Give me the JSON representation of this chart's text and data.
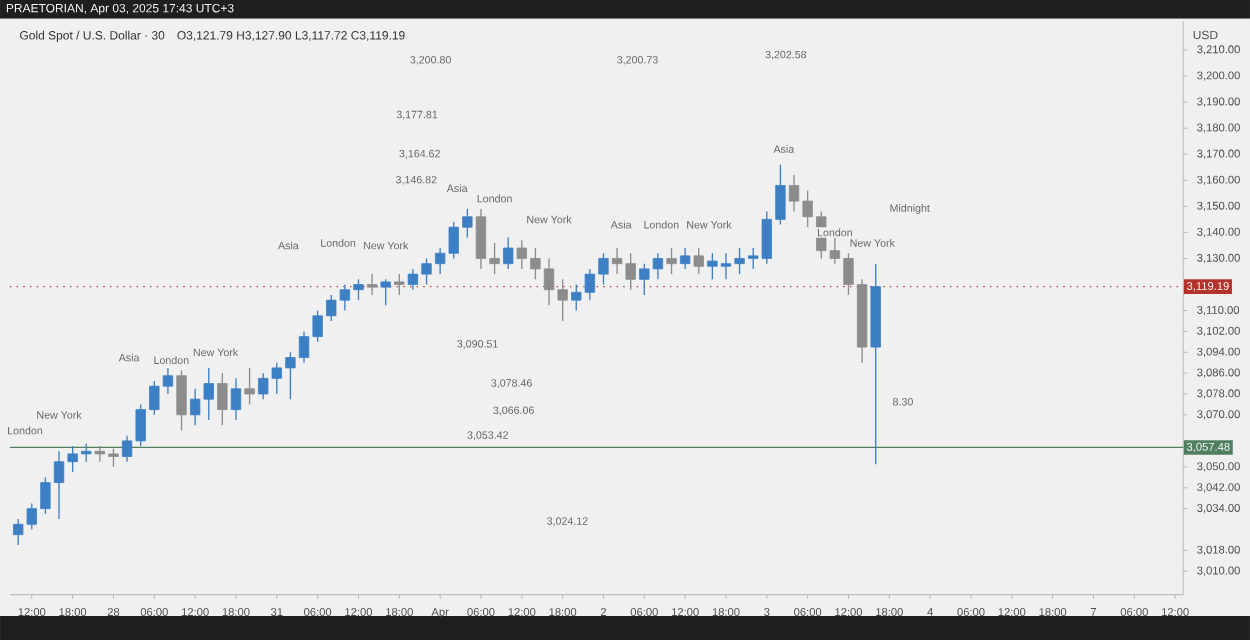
{
  "chart_data": {
    "type": "candlestick",
    "title": "Gold Spot / U.S. Dollar · 30",
    "subtitle": "O3,121.79 H3,127.90 L3,117.72 C3,119.19",
    "ylabel": "USD",
    "categories": [
      null,
      "12:00",
      null,
      null,
      "18:00",
      null,
      null,
      "28",
      null,
      null,
      "06:00",
      null,
      null,
      "12:00",
      null,
      null,
      "18:00",
      null,
      null,
      "31",
      null,
      null,
      "06:00",
      null,
      null,
      "12:00",
      null,
      null,
      "18:00",
      null,
      null,
      "Apr",
      null,
      null,
      "06:00",
      null,
      null,
      "12:00",
      null,
      null,
      "18:00",
      null,
      null,
      "2",
      null,
      null,
      "06:00",
      null,
      null,
      "12:00",
      null,
      null,
      "18:00",
      null,
      null,
      "3",
      null,
      null,
      "06:00",
      null,
      null,
      "12:00",
      null,
      null,
      "18:00",
      null,
      null,
      "4",
      null,
      null,
      "06:00",
      null,
      null,
      "12:00",
      null,
      null,
      "18:00",
      null,
      null,
      "7",
      null,
      null,
      "06:00",
      null,
      null,
      "12:00"
    ],
    "ohlc": [
      [
        3024,
        3030,
        3020,
        3028
      ],
      [
        3028,
        3036,
        3026,
        3034
      ],
      [
        3034,
        3046,
        3032,
        3044
      ],
      [
        3044,
        3056,
        3030,
        3052
      ],
      [
        3052,
        3058,
        3048,
        3055
      ],
      [
        3055,
        3059,
        3052,
        3056
      ],
      [
        3056,
        3058,
        3052,
        3055
      ],
      [
        3055,
        3057,
        3050,
        3054
      ],
      [
        3054,
        3062,
        3052,
        3060
      ],
      [
        3060,
        3074,
        3058,
        3072
      ],
      [
        3072,
        3083,
        3070,
        3081
      ],
      [
        3081,
        3088,
        3078,
        3085
      ],
      [
        3085,
        3087,
        3064,
        3070
      ],
      [
        3070,
        3080,
        3066,
        3076
      ],
      [
        3076,
        3088,
        3068,
        3082
      ],
      [
        3082,
        3086,
        3066,
        3072
      ],
      [
        3072,
        3084,
        3068,
        3080
      ],
      [
        3080,
        3088,
        3074,
        3078
      ],
      [
        3078,
        3086,
        3076,
        3084
      ],
      [
        3084,
        3090,
        3078,
        3088
      ],
      [
        3088,
        3094,
        3076,
        3092
      ],
      [
        3092,
        3102,
        3090,
        3100
      ],
      [
        3100,
        3110,
        3098,
        3108
      ],
      [
        3108,
        3116,
        3106,
        3114
      ],
      [
        3114,
        3120,
        3110,
        3118
      ],
      [
        3118,
        3122,
        3114,
        3120
      ],
      [
        3120,
        3124,
        3116,
        3119
      ],
      [
        3119,
        3122,
        3112,
        3121
      ],
      [
        3121,
        3124,
        3116,
        3120
      ],
      [
        3120,
        3126,
        3118,
        3124
      ],
      [
        3124,
        3130,
        3120,
        3128
      ],
      [
        3128,
        3134,
        3124,
        3132
      ],
      [
        3132,
        3144,
        3130,
        3142
      ],
      [
        3142,
        3149,
        3138,
        3146
      ],
      [
        3146,
        3149,
        3126,
        3130
      ],
      [
        3130,
        3136,
        3124,
        3128
      ],
      [
        3128,
        3138,
        3126,
        3134
      ],
      [
        3134,
        3137,
        3126,
        3130
      ],
      [
        3130,
        3134,
        3122,
        3126
      ],
      [
        3126,
        3130,
        3112,
        3118
      ],
      [
        3118,
        3122,
        3106,
        3114
      ],
      [
        3114,
        3120,
        3110,
        3117
      ],
      [
        3117,
        3126,
        3114,
        3124
      ],
      [
        3124,
        3132,
        3120,
        3130
      ],
      [
        3130,
        3134,
        3124,
        3128
      ],
      [
        3128,
        3132,
        3118,
        3122
      ],
      [
        3122,
        3128,
        3116,
        3126
      ],
      [
        3126,
        3132,
        3122,
        3130
      ],
      [
        3130,
        3134,
        3124,
        3128
      ],
      [
        3128,
        3134,
        3126,
        3131
      ],
      [
        3131,
        3134,
        3124,
        3127
      ],
      [
        3127,
        3132,
        3122,
        3129
      ],
      [
        3127,
        3132,
        3122,
        3128
      ],
      [
        3128,
        3134,
        3124,
        3130
      ],
      [
        3130,
        3134,
        3126,
        3131
      ],
      [
        3130,
        3148,
        3128,
        3145
      ],
      [
        3145,
        3166,
        3143,
        3158
      ],
      [
        3158,
        3162,
        3148,
        3152
      ],
      [
        3152,
        3156,
        3142,
        3146
      ],
      [
        3146,
        3148,
        3130,
        3133
      ],
      [
        3133,
        3138,
        3128,
        3130
      ],
      [
        3130,
        3132,
        3116,
        3120
      ],
      [
        3120,
        3122,
        3090,
        3096
      ],
      [
        3096,
        3127.9,
        3051,
        3119.19
      ],
      null,
      null,
      null,
      null,
      null,
      null,
      null,
      null,
      null,
      null,
      null,
      null,
      null,
      null,
      null,
      null,
      null,
      null,
      null,
      null,
      null,
      null
    ],
    "colors": [
      "#3d7fc4",
      "#3d7fc4",
      "#3d7fc4",
      "#3d7fc4",
      "#3d7fc4",
      "#3d7fc4",
      "#8c8c8c",
      "#8c8c8c",
      "#3d7fc4",
      "#3d7fc4",
      "#3d7fc4",
      "#3d7fc4",
      "#8c8c8c",
      "#3d7fc4",
      "#3d7fc4",
      "#8c8c8c",
      "#3d7fc4",
      "#8c8c8c",
      "#3d7fc4",
      "#3d7fc4",
      "#3d7fc4",
      "#3d7fc4",
      "#3d7fc4",
      "#3d7fc4",
      "#3d7fc4",
      "#3d7fc4",
      "#8c8c8c",
      "#3d7fc4",
      "#8c8c8c",
      "#3d7fc4",
      "#3d7fc4",
      "#3d7fc4",
      "#3d7fc4",
      "#3d7fc4",
      "#8c8c8c",
      "#8c8c8c",
      "#3d7fc4",
      "#8c8c8c",
      "#8c8c8c",
      "#8c8c8c",
      "#8c8c8c",
      "#3d7fc4",
      "#3d7fc4",
      "#3d7fc4",
      "#8c8c8c",
      "#8c8c8c",
      "#3d7fc4",
      "#3d7fc4",
      "#8c8c8c",
      "#3d7fc4",
      "#8c8c8c",
      "#3d7fc4",
      "#3d7fc4",
      "#3d7fc4",
      "#3d7fc4",
      "#3d7fc4",
      "#3d7fc4",
      "#8c8c8c",
      "#8c8c8c",
      "#8c8c8c",
      "#8c8c8c",
      "#8c8c8c",
      "#8c8c8c",
      "#3d7fc4",
      null,
      null,
      null,
      null,
      null,
      null,
      null,
      null,
      null,
      null,
      null,
      null,
      null,
      null,
      null,
      null,
      null,
      null,
      null,
      null,
      null,
      null
    ],
    "ylim": [
      3001,
      3221
    ],
    "yticks": [
      {
        "value": 3210,
        "label": "3,210.00"
      },
      {
        "value": 3200,
        "label": "3,200.00"
      },
      {
        "value": 3190,
        "label": "3,190.00"
      },
      {
        "value": 3180,
        "label": "3,180.00"
      },
      {
        "value": 3170,
        "label": "3,170.00"
      },
      {
        "value": 3160,
        "label": "3,160.00"
      },
      {
        "value": 3150,
        "label": "3,150.00"
      },
      {
        "value": 3140,
        "label": "3,140.00"
      },
      {
        "value": 3130,
        "label": "3,130.00"
      },
      {
        "value": 3110,
        "label": "3,110.00"
      },
      {
        "value": 3102,
        "label": "3,102.00"
      },
      {
        "value": 3094,
        "label": "3,094.00"
      },
      {
        "value": 3086,
        "label": "3,086.00"
      },
      {
        "value": 3078,
        "label": "3,078.00"
      },
      {
        "value": 3070,
        "label": "3,070.00"
      },
      {
        "value": 3050,
        "label": "3,050.00"
      },
      {
        "value": 3042,
        "label": "3,042.00"
      },
      {
        "value": 3034,
        "label": "3,034.00"
      },
      {
        "value": 3018,
        "label": "3,018.00"
      },
      {
        "value": 3010,
        "label": "3,010.00"
      }
    ],
    "ref_lines": [
      {
        "axis": "y",
        "value": 3057.48,
        "label": "3,057.48",
        "color": "#4f7f5f",
        "line_style": "solid"
      },
      {
        "axis": "y",
        "value": 3119.19,
        "label": "3,119.19",
        "color": "#b5322a",
        "line_style": "dotted"
      }
    ],
    "annotations": [
      "PRAETORIAN, Apr 03, 2025 17:43 UTC+3",
      "London",
      "New York",
      "Asia",
      "London",
      "New York",
      "Asia",
      "London",
      "New York",
      "Asia",
      "London",
      "New York",
      "Asia",
      "London",
      "New York",
      "Asia",
      "London",
      "New York",
      "Midnight",
      "8.30",
      "3,200.80",
      "3,200.73",
      "3,202.58",
      "3,177.81",
      "3,164.62",
      "3,146.82",
      "3,090.51",
      "3,078.46",
      "3,066.06",
      "3,053.42",
      "3,024.12"
    ]
  }
}
